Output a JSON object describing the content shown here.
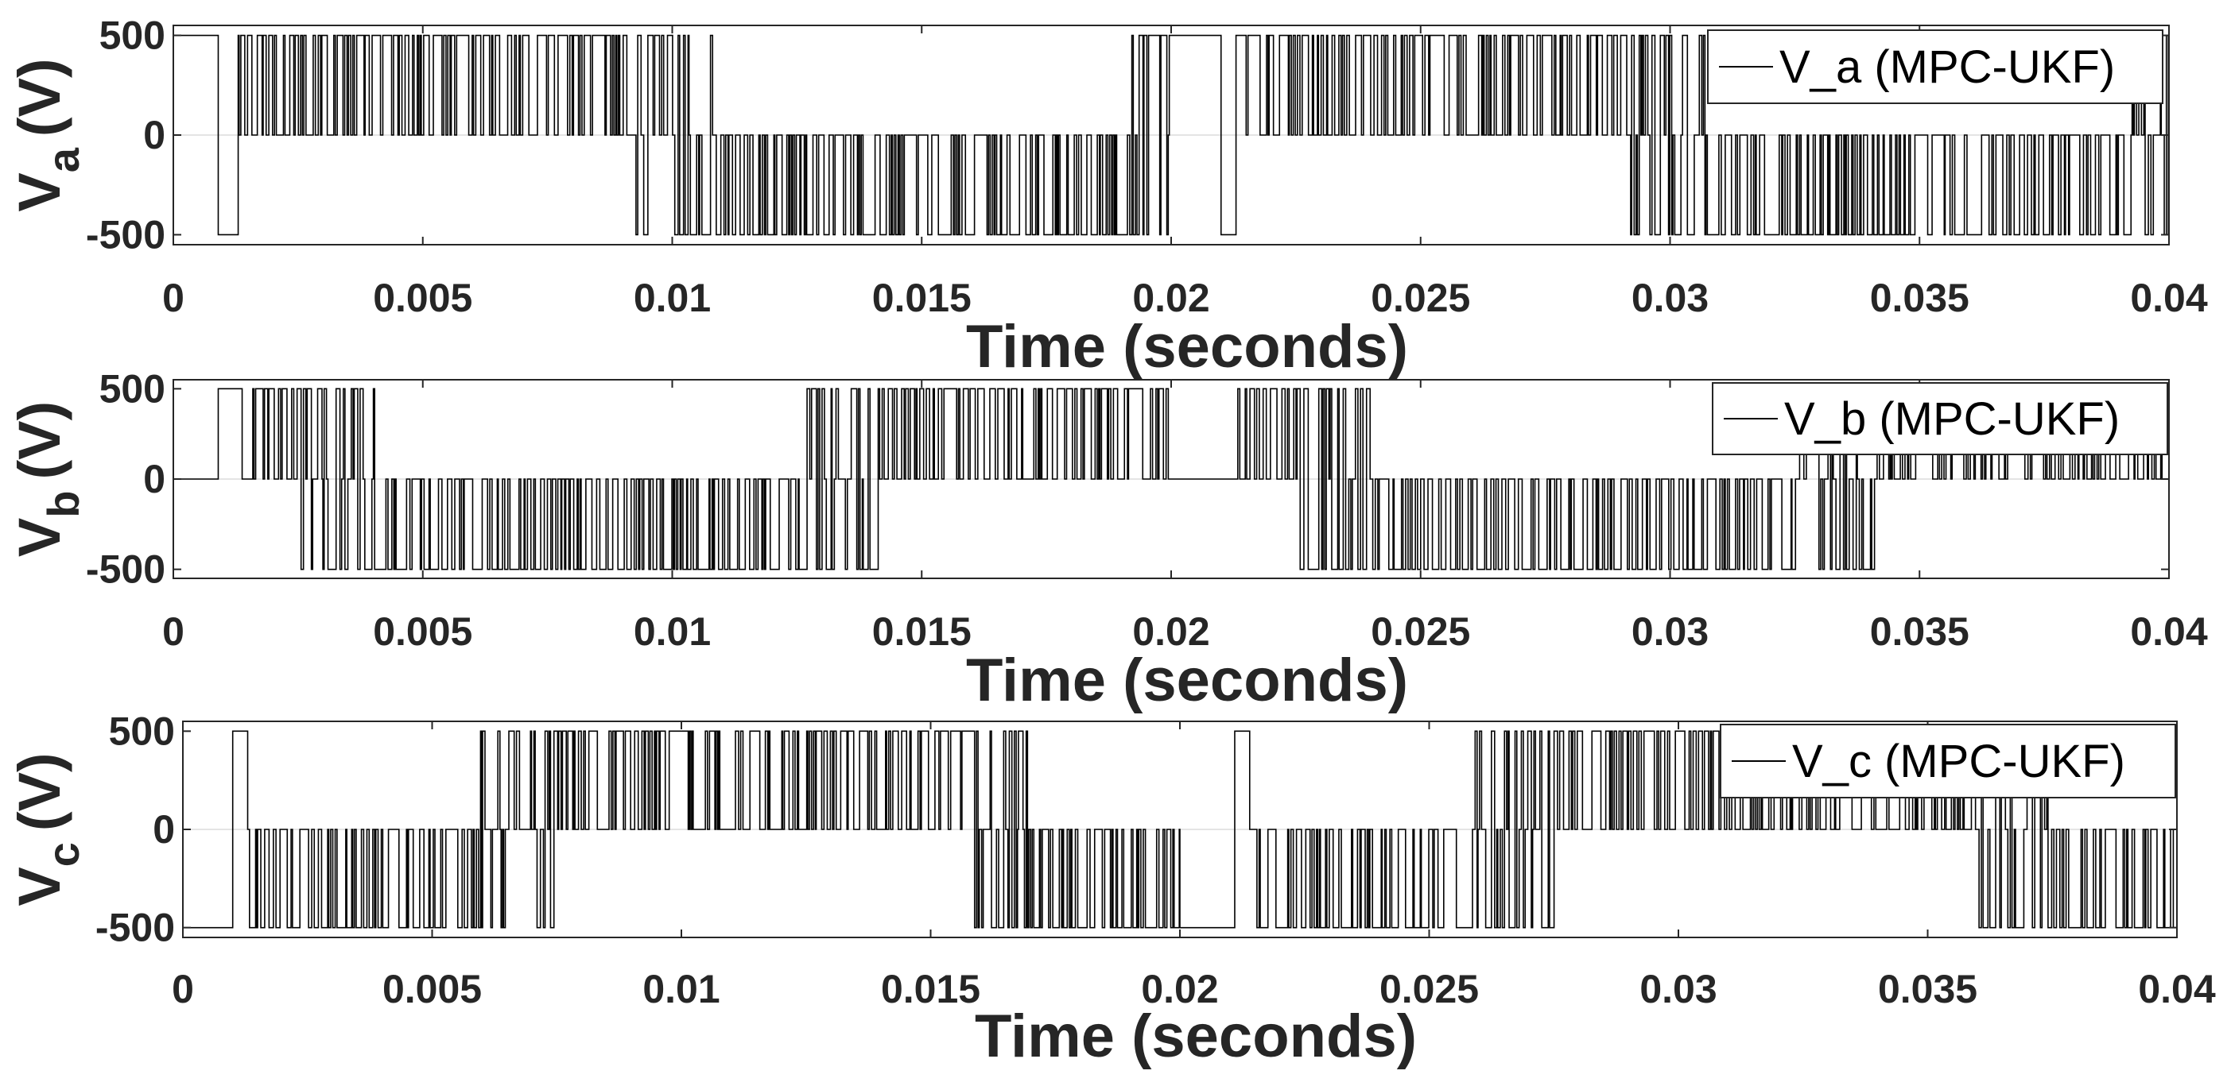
{
  "chart_data": [
    {
      "type": "line",
      "series": [
        {
          "name": "V_a (MPC-UKF)",
          "color": "#000000"
        }
      ],
      "ylabel_main": "V",
      "ylabel_sub": "a",
      "ylabel_unit": "(V)",
      "xlabel": "Time (seconds)",
      "xlim": [
        0,
        0.04
      ],
      "ylim": [
        -550,
        550
      ],
      "xticks": [
        0,
        0.005,
        0.01,
        0.015,
        0.02,
        0.025,
        0.03,
        0.035,
        0.04
      ],
      "xtick_labels": [
        "0",
        "0.005",
        "0.01",
        "0.015",
        "0.02",
        "0.025",
        "0.03",
        "0.035",
        "0.04"
      ],
      "yticks": [
        500,
        0,
        -500
      ],
      "ytick_labels": [
        "500",
        "0",
        "-500"
      ],
      "legend_position": "top-right",
      "levels": [
        -500,
        0,
        500
      ],
      "segments": [
        {
          "t0": 0.0,
          "t1": 0.0009,
          "level": 500
        },
        {
          "t0": 0.0009,
          "t1": 0.0013,
          "level": -500
        },
        {
          "t0": 0.0013,
          "t1": 0.02,
          "pattern": "pwm",
          "density": 0.9
        },
        {
          "t0": 0.02,
          "t1": 0.021,
          "level": 500
        },
        {
          "t0": 0.021,
          "t1": 0.0213,
          "level": -500
        },
        {
          "t0": 0.0213,
          "t1": 0.04,
          "pattern": "pwm",
          "density": 0.85
        }
      ]
    },
    {
      "type": "line",
      "series": [
        {
          "name": "V_b (MPC-UKF)",
          "color": "#000000"
        }
      ],
      "ylabel_main": "V",
      "ylabel_sub": "b",
      "ylabel_unit": "(V)",
      "xlabel": "Time (seconds)",
      "xlim": [
        0,
        0.04
      ],
      "ylim": [
        -550,
        550
      ],
      "xticks": [
        0,
        0.005,
        0.01,
        0.015,
        0.02,
        0.025,
        0.03,
        0.035,
        0.04
      ],
      "xtick_labels": [
        "0",
        "0.005",
        "0.01",
        "0.015",
        "0.02",
        "0.025",
        "0.03",
        "0.035",
        "0.04"
      ],
      "yticks": [
        500,
        0,
        -500
      ],
      "ytick_labels": [
        "500",
        "0",
        "-500"
      ],
      "legend_position": "top-right",
      "levels": [
        -500,
        0,
        500
      ],
      "segments": [
        {
          "t0": 0.0,
          "t1": 0.0009,
          "level": 0
        },
        {
          "t0": 0.0009,
          "t1": 0.0012,
          "level": 500
        },
        {
          "t0": 0.0012,
          "t1": 0.02,
          "pattern": "pwm",
          "density": 0.9
        },
        {
          "t0": 0.02,
          "t1": 0.0211,
          "level": 0
        },
        {
          "t0": 0.0211,
          "t1": 0.04,
          "pattern": "pwm",
          "density": 0.85
        }
      ]
    },
    {
      "type": "line",
      "series": [
        {
          "name": "V_c (MPC-UKF)",
          "color": "#000000"
        }
      ],
      "ylabel_main": "V",
      "ylabel_sub": "c",
      "ylabel_unit": "(V)",
      "xlabel": "Time (seconds)",
      "xlim": [
        0,
        0.04
      ],
      "ylim": [
        -550,
        550
      ],
      "xticks": [
        0,
        0.005,
        0.01,
        0.015,
        0.02,
        0.025,
        0.03,
        0.035,
        0.04
      ],
      "xtick_labels": [
        "0",
        "0.005",
        "0.01",
        "0.015",
        "0.02",
        "0.025",
        "0.03",
        "0.035",
        "0.04"
      ],
      "yticks": [
        500,
        0,
        -500
      ],
      "ytick_labels": [
        "500",
        "0",
        "-500"
      ],
      "legend_position": "top-right",
      "levels": [
        -500,
        0,
        500
      ],
      "segments": [
        {
          "t0": 0.0,
          "t1": 0.001,
          "level": -500
        },
        {
          "t0": 0.001,
          "t1": 0.0013,
          "level": 500
        },
        {
          "t0": 0.0013,
          "t1": 0.02,
          "pattern": "pwm",
          "density": 0.9
        },
        {
          "t0": 0.02,
          "t1": 0.0211,
          "level": -500
        },
        {
          "t0": 0.0211,
          "t1": 0.0214,
          "level": 500
        },
        {
          "t0": 0.0214,
          "t1": 0.04,
          "pattern": "pwm",
          "density": 0.85
        }
      ]
    }
  ]
}
